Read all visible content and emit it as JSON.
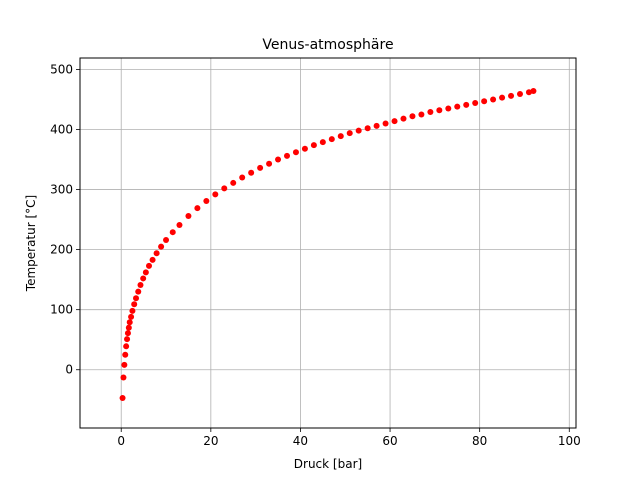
{
  "chart_data": {
    "type": "scatter",
    "title": "Venus-atmosphäre",
    "xlabel": "Druck [bar]",
    "ylabel": "Temperatur [°C]",
    "xlim": [
      -9.2,
      101.5
    ],
    "ylim": [
      -97,
      519
    ],
    "xticks": [
      0,
      20,
      40,
      60,
      80,
      100
    ],
    "yticks": [
      0,
      100,
      200,
      300,
      400,
      500
    ],
    "grid": true,
    "marker_color": "#ff0000",
    "series": [
      {
        "points": [
          [
            0.3,
            -47
          ],
          [
            0.5,
            -13
          ],
          [
            0.7,
            8
          ],
          [
            0.9,
            25
          ],
          [
            1.1,
            39
          ],
          [
            1.3,
            51
          ],
          [
            1.5,
            61
          ],
          [
            1.7,
            70
          ],
          [
            1.9,
            79
          ],
          [
            2.2,
            88
          ],
          [
            2.5,
            98
          ],
          [
            2.9,
            109
          ],
          [
            3.3,
            119
          ],
          [
            3.8,
            130
          ],
          [
            4.3,
            141
          ],
          [
            4.9,
            152
          ],
          [
            5.5,
            162
          ],
          [
            6.2,
            173
          ],
          [
            7.0,
            183
          ],
          [
            7.9,
            194
          ],
          [
            8.9,
            205
          ],
          [
            10,
            216
          ],
          [
            11.5,
            229
          ],
          [
            13,
            241
          ],
          [
            15,
            256
          ],
          [
            17,
            269
          ],
          [
            19,
            281
          ],
          [
            21,
            292
          ],
          [
            23,
            302
          ],
          [
            25,
            311
          ],
          [
            27,
            320
          ],
          [
            29,
            328
          ],
          [
            31,
            336
          ],
          [
            33,
            343
          ],
          [
            35,
            350
          ],
          [
            37,
            356
          ],
          [
            39,
            362
          ],
          [
            41,
            368
          ],
          [
            43,
            374
          ],
          [
            45,
            379
          ],
          [
            47,
            384
          ],
          [
            49,
            389
          ],
          [
            51,
            394
          ],
          [
            53,
            398
          ],
          [
            55,
            402
          ],
          [
            57,
            406
          ],
          [
            59,
            410
          ],
          [
            61,
            414
          ],
          [
            63,
            418
          ],
          [
            65,
            422
          ],
          [
            67,
            425
          ],
          [
            69,
            429
          ],
          [
            71,
            432
          ],
          [
            73,
            435
          ],
          [
            75,
            438
          ],
          [
            77,
            441
          ],
          [
            79,
            444
          ],
          [
            81,
            447
          ],
          [
            83,
            450
          ],
          [
            85,
            453
          ],
          [
            87,
            456
          ],
          [
            89,
            459
          ],
          [
            91,
            462
          ],
          [
            92,
            464
          ]
        ]
      }
    ]
  }
}
